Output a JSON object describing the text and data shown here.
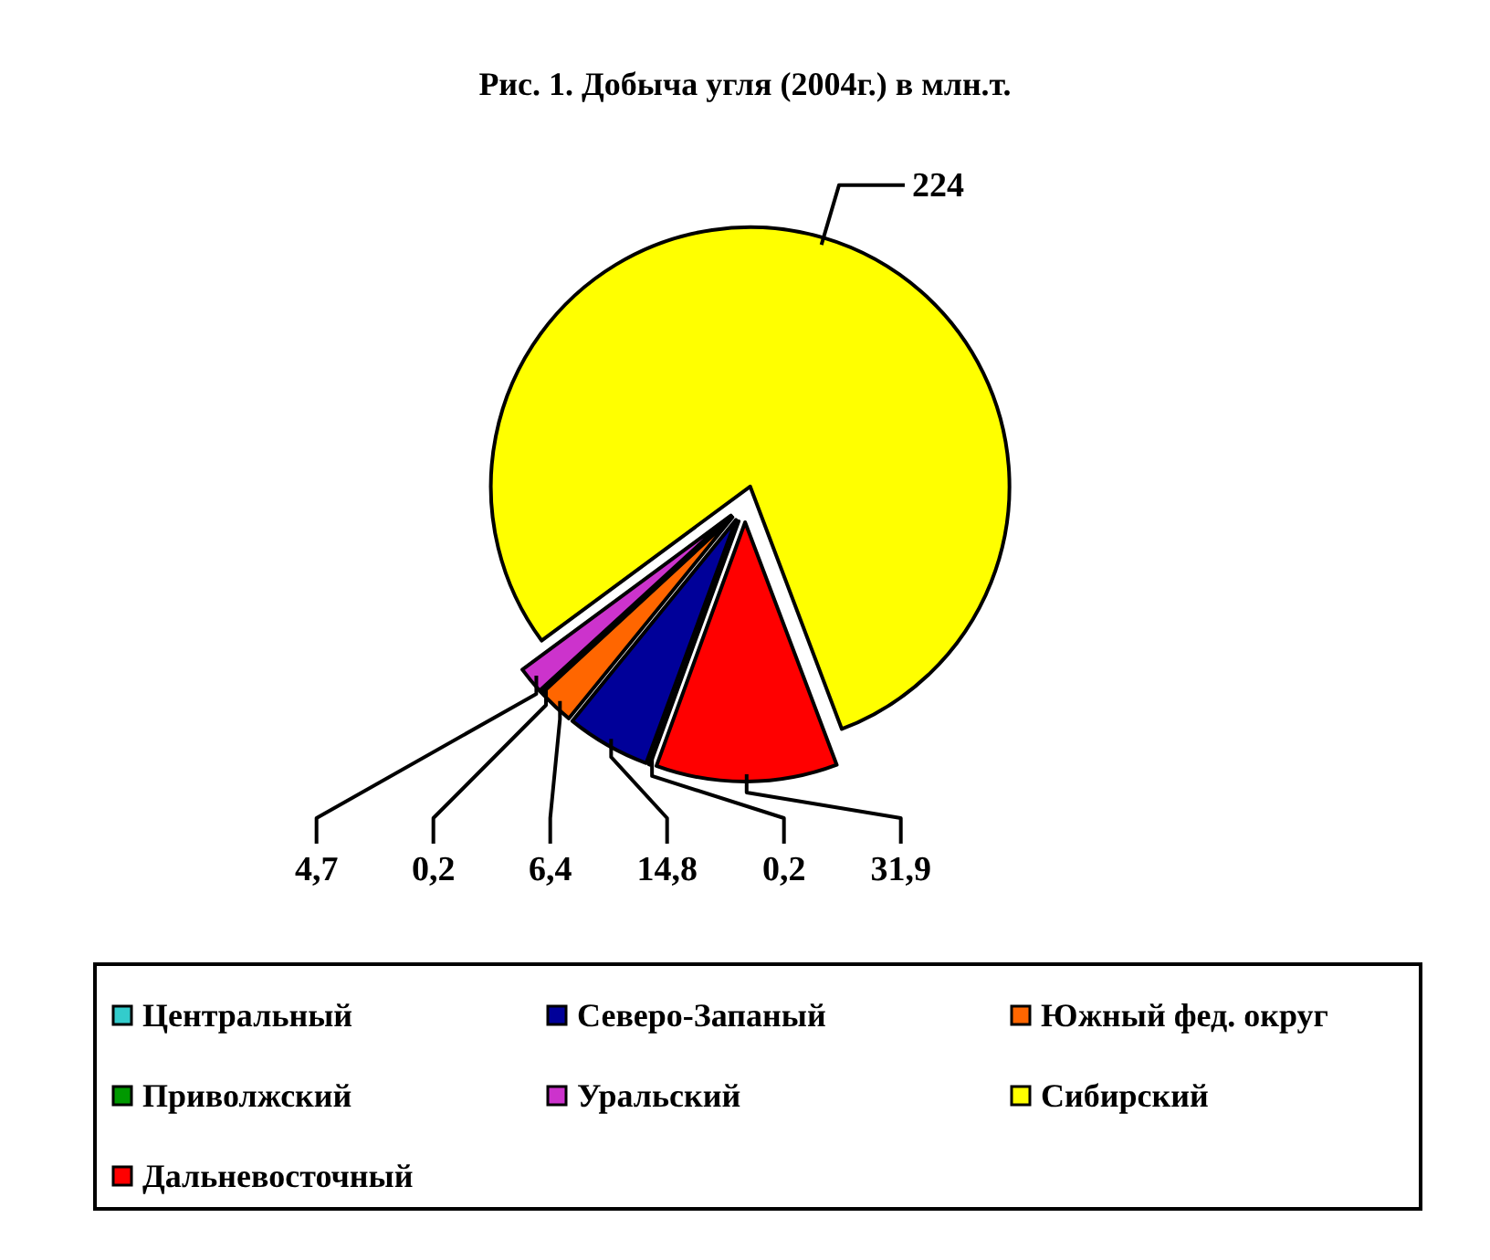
{
  "chart_data": {
    "type": "pie",
    "title": "Рис. 1. Добыча угля (2004г.) в млн.т.",
    "categories": [
      "Центральный",
      "Северо-Запаный",
      "Южный фед. округ",
      "Приволжский",
      "Уральский",
      "Сибирский",
      "Дальневосточный"
    ],
    "values": [
      0.2,
      14.8,
      6.4,
      0.2,
      4.7,
      224,
      31.9
    ],
    "value_labels": [
      "0,2",
      "14,8",
      "6,4",
      "0,2",
      "4,7",
      "224",
      "31,9"
    ],
    "colors": [
      "#33cccc",
      "#000099",
      "#ff6600",
      "#009900",
      "#cc33cc",
      "#ffff00",
      "#ff0000"
    ],
    "legend": "bottom"
  }
}
